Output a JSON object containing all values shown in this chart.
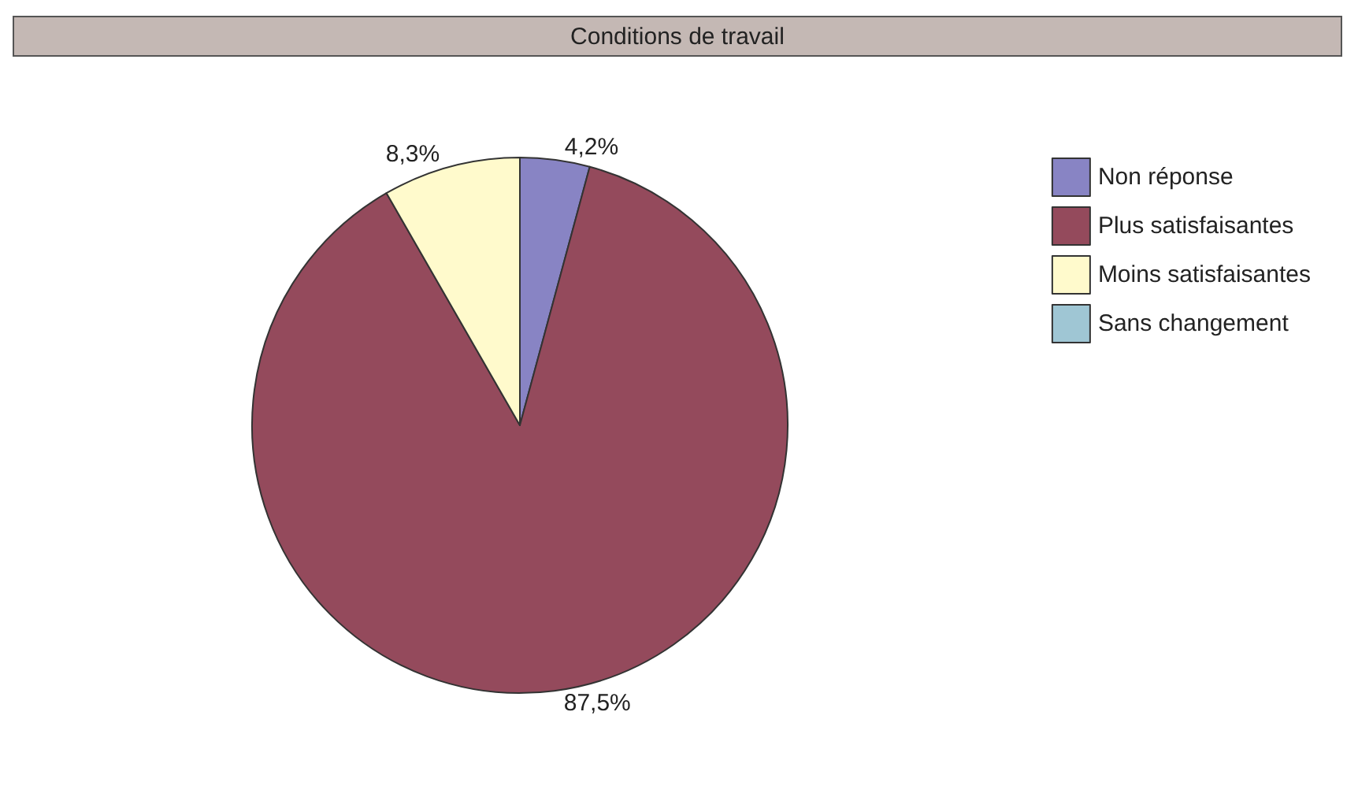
{
  "chart_data": {
    "type": "pie",
    "title": "Conditions de travail",
    "categories": [
      "Non réponse",
      "Plus satisfaisantes",
      "Moins satisfaisantes",
      "Sans changement"
    ],
    "values": [
      4.2,
      87.5,
      8.3,
      0
    ],
    "colors": [
      "#8884c4",
      "#944a5c",
      "#fffacc",
      "#9fc6d4"
    ],
    "value_labels": [
      "4,2%",
      "87,5%",
      "8,3%",
      null
    ],
    "legend": "top right"
  }
}
